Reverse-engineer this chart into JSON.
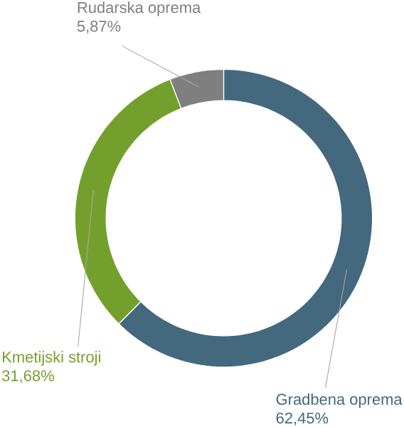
{
  "chart_data": {
    "type": "donut",
    "categories": [
      "Gradbena oprema",
      "Kmetijski stroji",
      "Rudarska oprema"
    ],
    "values": [
      62.45,
      31.68,
      5.87
    ],
    "value_labels": [
      "62,45%",
      "31,68%",
      "5,87%"
    ],
    "colors": [
      "#44687d",
      "#73a02d",
      "#7f7f7f"
    ]
  }
}
